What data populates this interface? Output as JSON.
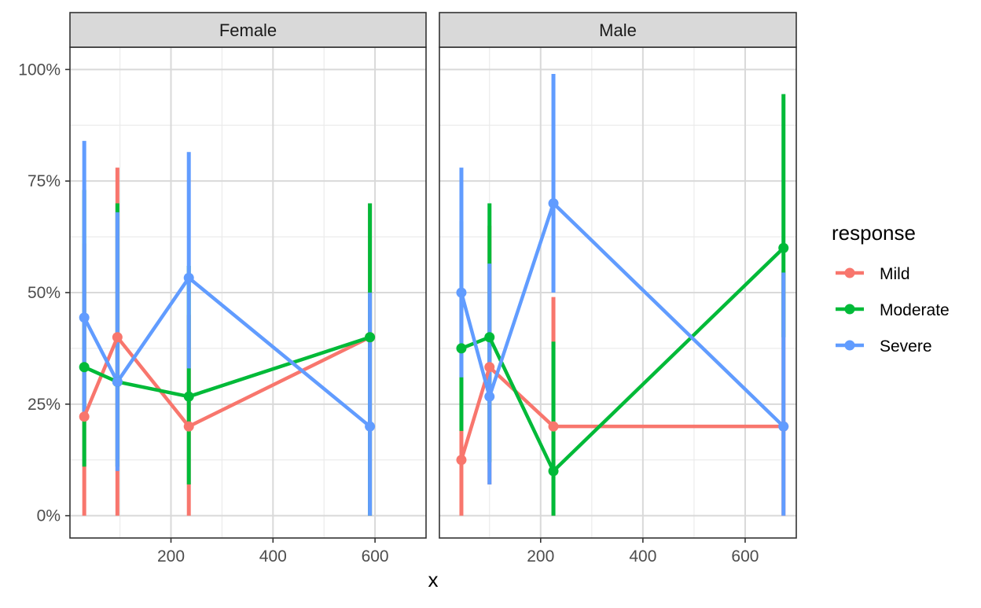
{
  "chart_data": {
    "type": "line",
    "xlabel": "x",
    "ylabel": "",
    "legend": {
      "title": "response",
      "placement": "right",
      "items": [
        {
          "name": "Mild",
          "color": "#F8766D"
        },
        {
          "name": "Moderate",
          "color": "#00BA38"
        },
        {
          "name": "Severe",
          "color": "#619CFF"
        }
      ]
    },
    "xticks": [
      "200",
      "400",
      "600"
    ],
    "yticks": [
      "0%",
      "25%",
      "50%",
      "75%",
      "100%"
    ],
    "grid": true,
    "panels": [
      {
        "title": "Female",
        "xlim": [
          2,
          700
        ],
        "ylim": [
          -0.05,
          1.05
        ],
        "series": [
          {
            "name": "Mild",
            "color": "#F8766D",
            "x": [
              30,
              95,
              235,
              590
            ],
            "y": [
              0.222,
              0.4,
              0.2,
              0.4
            ],
            "lower": [
              0.0,
              0.0,
              0.0,
              0.0
            ],
            "upper": [
              0.61,
              0.78,
              0.45,
              0.7
            ]
          },
          {
            "name": "Moderate",
            "color": "#00BA38",
            "x": [
              30,
              95,
              235,
              590
            ],
            "y": [
              0.333,
              0.3,
              0.267,
              0.4
            ],
            "lower": [
              0.11,
              0.11,
              0.07,
              0.0
            ],
            "upper": [
              0.73,
              0.7,
              0.56,
              0.7
            ]
          },
          {
            "name": "Severe",
            "color": "#619CFF",
            "x": [
              30,
              95,
              235,
              590
            ],
            "y": [
              0.444,
              0.3,
              0.533,
              0.2
            ],
            "lower": [
              0.22,
              0.1,
              0.33,
              0.0
            ],
            "upper": [
              0.84,
              0.68,
              0.815,
              0.5
            ]
          }
        ]
      },
      {
        "title": "Male",
        "xlim": [
          2,
          700
        ],
        "ylim": [
          -0.05,
          1.05
        ],
        "series": [
          {
            "name": "Mild",
            "color": "#F8766D",
            "x": [
              45,
              100,
              225,
              675
            ],
            "y": [
              0.125,
              0.333,
              0.2,
              0.2
            ],
            "lower": [
              0.0,
              0.07,
              0.0,
              0.0
            ],
            "upper": [
              0.5,
              0.65,
              0.49,
              0.55
            ]
          },
          {
            "name": "Moderate",
            "color": "#00BA38",
            "x": [
              45,
              100,
              225,
              675
            ],
            "y": [
              0.375,
              0.4,
              0.1,
              0.6
            ],
            "lower": [
              0.19,
              0.12,
              0.0,
              0.4
            ],
            "upper": [
              0.66,
              0.7,
              0.39,
              0.945
            ]
          },
          {
            "name": "Severe",
            "color": "#619CFF",
            "x": [
              45,
              100,
              225,
              675
            ],
            "y": [
              0.5,
              0.267,
              0.7,
              0.2
            ],
            "lower": [
              0.31,
              0.07,
              0.5,
              0.0
            ],
            "upper": [
              0.78,
              0.565,
              0.99,
              0.545
            ]
          }
        ]
      }
    ]
  }
}
